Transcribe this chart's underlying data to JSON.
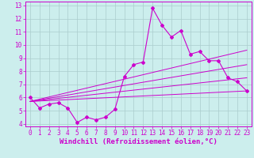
{
  "title": "",
  "xlabel": "Windchill (Refroidissement éolien,°C)",
  "ylabel": "",
  "bg_color": "#cceeed",
  "grid_color": "#aacccc",
  "line_color": "#cc00cc",
  "xlim": [
    -0.5,
    23.5
  ],
  "ylim": [
    3.8,
    13.3
  ],
  "xticks": [
    0,
    1,
    2,
    3,
    4,
    5,
    6,
    7,
    8,
    9,
    10,
    11,
    12,
    13,
    14,
    15,
    16,
    17,
    18,
    19,
    20,
    21,
    22,
    23
  ],
  "yticks": [
    4,
    5,
    6,
    7,
    8,
    9,
    10,
    11,
    12,
    13
  ],
  "series1_x": [
    0,
    1,
    2,
    3,
    4,
    5,
    6,
    7,
    8,
    9,
    10,
    11,
    12,
    13,
    14,
    15,
    16,
    17,
    18,
    19,
    20,
    21,
    22,
    23
  ],
  "series1_y": [
    6.0,
    5.2,
    5.5,
    5.6,
    5.2,
    4.1,
    4.5,
    4.3,
    4.5,
    5.1,
    7.6,
    8.5,
    8.7,
    12.8,
    11.5,
    10.6,
    11.1,
    9.3,
    9.5,
    8.8,
    8.8,
    7.5,
    7.2,
    6.5
  ],
  "series2_x": [
    0,
    23
  ],
  "series2_y": [
    5.7,
    6.5
  ],
  "series3_x": [
    0,
    23
  ],
  "series3_y": [
    5.7,
    7.5
  ],
  "series4_x": [
    0,
    23
  ],
  "series4_y": [
    5.7,
    8.5
  ],
  "series5_x": [
    0,
    23
  ],
  "series5_y": [
    5.7,
    9.6
  ],
  "tick_fontsize": 5.5,
  "xlabel_fontsize": 6.5
}
